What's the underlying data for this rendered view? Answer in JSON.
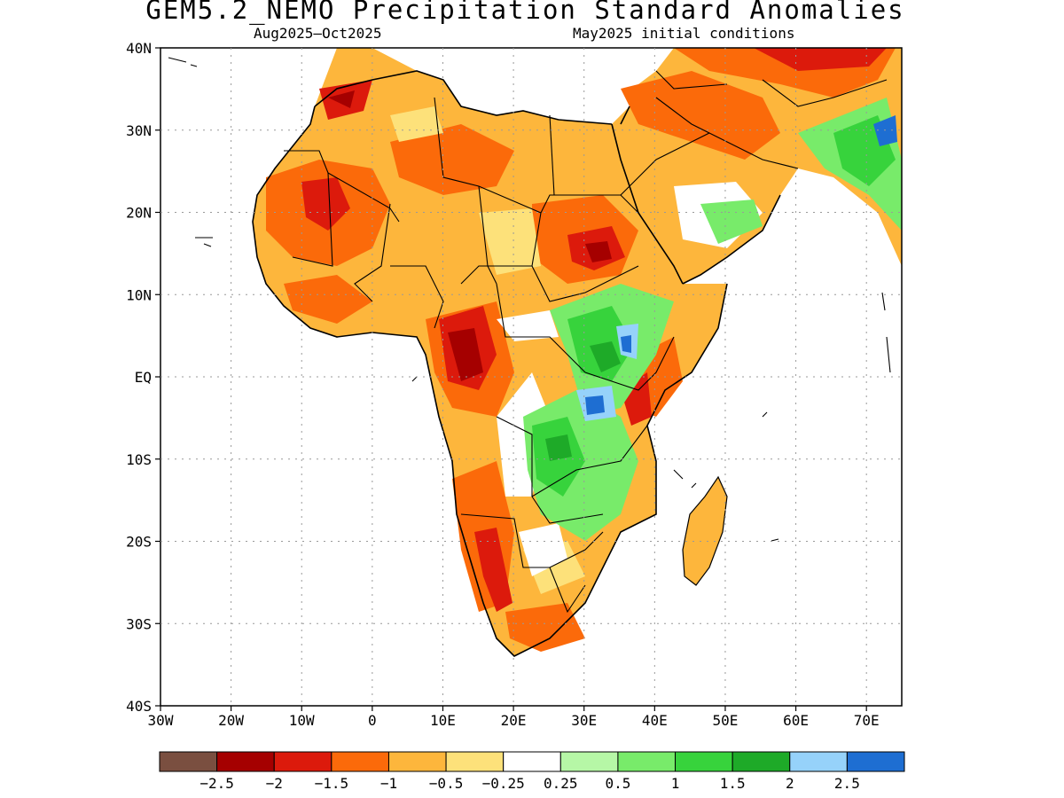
{
  "title": "GEM5.2_NEMO Precipitation Standard Anomalies",
  "subtitle_left": "Aug2025–Oct2025",
  "subtitle_right": "May2025 initial conditions",
  "map": {
    "lon_range": [
      -30,
      75
    ],
    "lat_range": [
      -40,
      40
    ],
    "lat_ticks": [
      "40N",
      "30N",
      "20N",
      "10N",
      "EQ",
      "10S",
      "20S",
      "30S",
      "40S"
    ],
    "lon_ticks": [
      "30W",
      "20W",
      "10W",
      "0",
      "10E",
      "20E",
      "30E",
      "40E",
      "50E",
      "60E",
      "70E"
    ],
    "grid": true
  },
  "legend": {
    "colors": [
      "#7a4f40",
      "#a50000",
      "#dc1a0c",
      "#fb6a0a",
      "#fdb63c",
      "#fde17a",
      "#ffffff",
      "#b6f7a6",
      "#78eb6a",
      "#37d33c",
      "#1eaa28",
      "#96d2fa",
      "#1e6ed2"
    ],
    "labels": [
      "−2.5",
      "−2",
      "−1.5",
      "−1",
      "−0.5",
      "−0.25",
      "0.25",
      "0.5",
      "1",
      "1.5",
      "2",
      "2.5"
    ]
  }
}
